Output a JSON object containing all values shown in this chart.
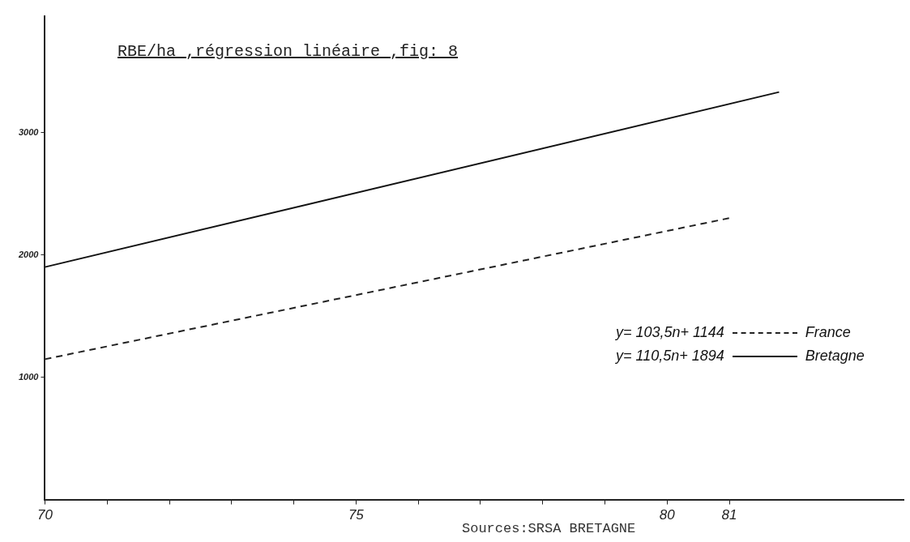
{
  "chart_data": {
    "type": "line",
    "title": "RBE/ha ,régression linéaire ,fig: 8",
    "xlim": [
      70,
      83.8
    ],
    "xticks": [
      70,
      {
        "value": 71,
        "label": null
      },
      {
        "value": 72,
        "label": null
      },
      {
        "value": 73,
        "label": null
      },
      {
        "value": 74,
        "label": null
      },
      75,
      {
        "value": 76,
        "label": null
      },
      {
        "value": 77,
        "label": null
      },
      {
        "value": 78,
        "label": null
      },
      {
        "value": 79,
        "label": null
      },
      80,
      81
    ],
    "ylim": [
      0,
      3950
    ],
    "yticks": [
      1000,
      2000,
      3000
    ],
    "series": [
      {
        "name": "France",
        "color": "#222222",
        "line_style": "dashed",
        "x": [
          70,
          81
        ],
        "values": [
          1147,
          2300
        ]
      },
      {
        "name": "Bretagne",
        "color": "#111111",
        "line_style": "solid",
        "x": [
          70,
          81.8
        ],
        "values": [
          1900,
          3330
        ]
      }
    ],
    "annotations": [
      "y= 103,5n+ 1144",
      "y= 110,5n+ 1894",
      "Sources:SRSA BRETAGNE"
    ],
    "legend": "right",
    "marker": "none",
    "grid": false
  }
}
